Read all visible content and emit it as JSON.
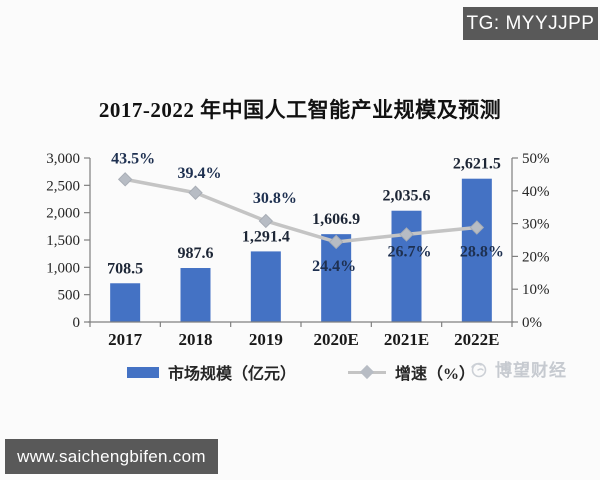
{
  "badge": {
    "text": "TG: MYYJJPP"
  },
  "footer": {
    "url": "www.saichengbifen.com"
  },
  "watermark": {
    "text": "博望财经"
  },
  "chart_data": {
    "type": "bar+line",
    "title": "2017-2022 年中国人工智能产业规模及预测",
    "categories": [
      "2017",
      "2018",
      "2019",
      "2020E",
      "2021E",
      "2022E"
    ],
    "series": [
      {
        "name": "市场规模（亿元）",
        "type": "bar",
        "axis": "left",
        "values": [
          708.5,
          987.6,
          1291.4,
          1606.9,
          2035.6,
          2621.5
        ],
        "labels": [
          "708.5",
          "987.6",
          "1,291.4",
          "1,606.9",
          "2,035.6",
          "2,621.5"
        ],
        "color": "#4472c4"
      },
      {
        "name": "增速（%）",
        "type": "line",
        "axis": "right",
        "values": [
          43.5,
          39.4,
          30.8,
          24.4,
          26.7,
          28.8
        ],
        "labels": [
          "43.5%",
          "39.4%",
          "30.8%",
          "24.4%",
          "26.7%",
          "28.8%"
        ],
        "color": "#c4c4c4",
        "marker": "diamond",
        "marker_color": "#b7bcc4",
        "marker_edge": "#a8adb5"
      }
    ],
    "left_axis": {
      "min": 0,
      "max": 3000,
      "tick_labels": [
        "0",
        "500",
        "1,000",
        "1,500",
        "2,000",
        "2,500",
        "3,000"
      ]
    },
    "right_axis": {
      "min": 0,
      "max": 50,
      "tick_labels": [
        "0%",
        "10%",
        "20%",
        "30%",
        "40%",
        "50%"
      ]
    },
    "legend": {
      "position": "bottom",
      "entries": [
        "市场规模（亿元）",
        "增速（%）"
      ]
    },
    "grid": false,
    "growth_label_offset": {
      "dx": [
        8,
        4,
        9,
        -2,
        3,
        5
      ],
      "dy": [
        -16,
        -15,
        -18,
        29,
        22,
        29
      ]
    }
  }
}
